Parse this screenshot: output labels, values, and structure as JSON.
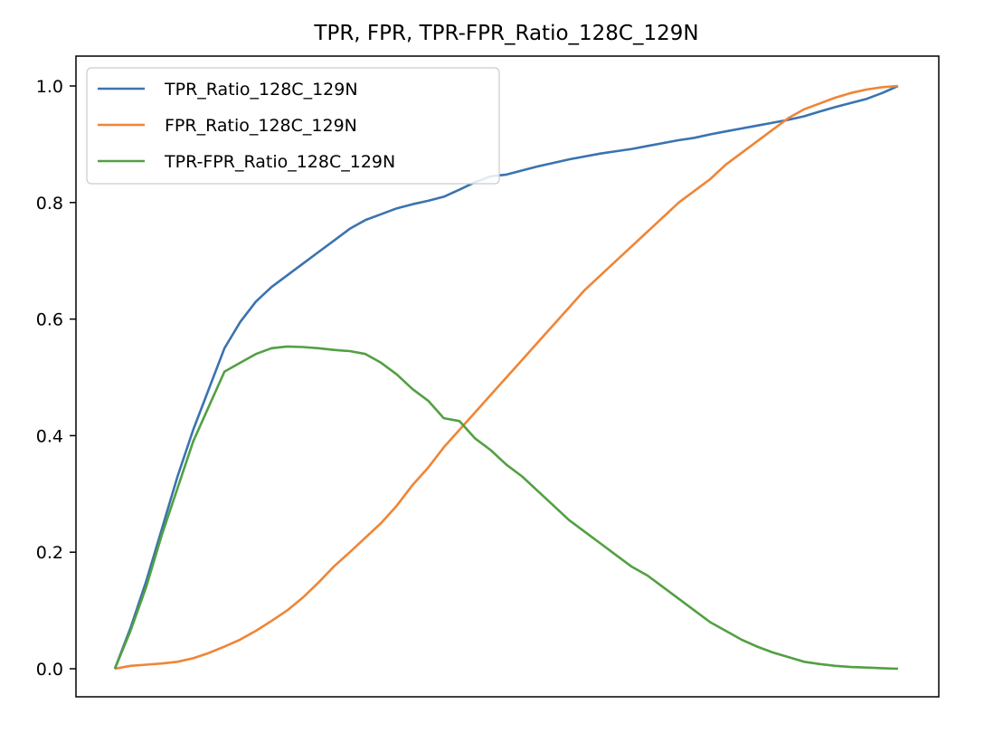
{
  "chart_data": {
    "type": "line",
    "title": "TPR, FPR, TPR-FPR_Ratio_128C_129N",
    "xlabel": "",
    "ylabel": "",
    "xlim": [
      0,
      1
    ],
    "ylim": [
      0,
      1
    ],
    "yticks": [
      "0.0",
      "0.2",
      "0.4",
      "0.6",
      "0.8",
      "1.0"
    ],
    "ytick_values": [
      0,
      0.2,
      0.4,
      0.6,
      0.8,
      1.0
    ],
    "grid": false,
    "legend_position": "upper-left",
    "x": [
      0,
      0.02,
      0.04,
      0.06,
      0.08,
      0.1,
      0.12,
      0.14,
      0.16,
      0.18,
      0.2,
      0.22,
      0.24,
      0.26,
      0.28,
      0.3,
      0.32,
      0.34,
      0.36,
      0.38,
      0.4,
      0.42,
      0.44,
      0.46,
      0.48,
      0.5,
      0.52,
      0.54,
      0.56,
      0.58,
      0.6,
      0.62,
      0.64,
      0.66,
      0.68,
      0.7,
      0.72,
      0.74,
      0.76,
      0.78,
      0.8,
      0.82,
      0.84,
      0.86,
      0.88,
      0.9,
      0.92,
      0.94,
      0.96,
      0.98,
      1.0
    ],
    "series": [
      {
        "name": "TPR_Ratio_128C_129N",
        "color": "#3a73b0",
        "values": [
          0.0,
          0.07,
          0.15,
          0.24,
          0.33,
          0.41,
          0.48,
          0.55,
          0.595,
          0.63,
          0.655,
          0.675,
          0.695,
          0.715,
          0.735,
          0.755,
          0.77,
          0.78,
          0.79,
          0.797,
          0.803,
          0.81,
          0.822,
          0.835,
          0.845,
          0.848,
          0.855,
          0.862,
          0.868,
          0.874,
          0.879,
          0.884,
          0.888,
          0.892,
          0.897,
          0.902,
          0.907,
          0.911,
          0.917,
          0.922,
          0.927,
          0.932,
          0.937,
          0.942,
          0.948,
          0.956,
          0.964,
          0.971,
          0.978,
          0.988,
          1.0
        ]
      },
      {
        "name": "FPR_Ratio_128C_129N",
        "color": "#ef8536",
        "values": [
          0.0,
          0.005,
          0.007,
          0.009,
          0.012,
          0.018,
          0.027,
          0.038,
          0.05,
          0.065,
          0.082,
          0.1,
          0.122,
          0.148,
          0.176,
          0.2,
          0.225,
          0.25,
          0.28,
          0.315,
          0.345,
          0.38,
          0.41,
          0.44,
          0.47,
          0.5,
          0.53,
          0.56,
          0.59,
          0.62,
          0.65,
          0.675,
          0.7,
          0.725,
          0.75,
          0.775,
          0.8,
          0.82,
          0.84,
          0.865,
          0.885,
          0.905,
          0.925,
          0.945,
          0.96,
          0.97,
          0.98,
          0.988,
          0.994,
          0.998,
          1.0
        ]
      },
      {
        "name": "TPR-FPR_Ratio_128C_129N",
        "color": "#52a042",
        "values": [
          0.0,
          0.065,
          0.14,
          0.23,
          0.31,
          0.39,
          0.45,
          0.51,
          0.525,
          0.54,
          0.55,
          0.553,
          0.552,
          0.55,
          0.547,
          0.545,
          0.54,
          0.525,
          0.505,
          0.48,
          0.46,
          0.43,
          0.425,
          0.395,
          0.375,
          0.35,
          0.33,
          0.305,
          0.28,
          0.255,
          0.235,
          0.215,
          0.195,
          0.175,
          0.16,
          0.14,
          0.12,
          0.1,
          0.08,
          0.065,
          0.05,
          0.038,
          0.028,
          0.02,
          0.012,
          0.008,
          0.005,
          0.003,
          0.002,
          0.001,
          0.0
        ]
      }
    ]
  }
}
